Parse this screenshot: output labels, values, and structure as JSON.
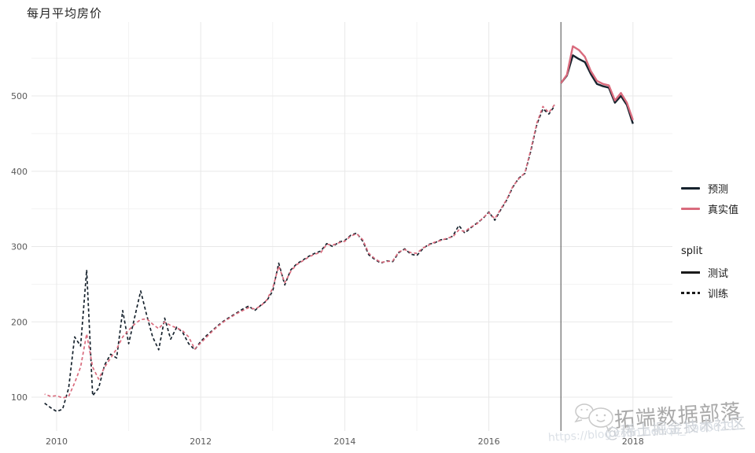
{
  "title": "每月平均房价",
  "legend": {
    "color_items": [
      {
        "label": "预测",
        "color_key": "predicted"
      },
      {
        "label": "真实值",
        "color_key": "actual"
      }
    ],
    "split_title": "split",
    "split_items": [
      {
        "label": "测试",
        "linetype": "solid"
      },
      {
        "label": "训练",
        "linetype": "dashed"
      }
    ]
  },
  "watermark": {
    "brand": "拓端数据部落",
    "community": "@稀土掘金技术社区",
    "url": "https://blog.csdn.net/qq_19600291",
    "icon": "chat-bubbles-icon"
  },
  "chart_data": {
    "type": "line",
    "title": "每月平均房价",
    "xlabel": "",
    "ylabel": "",
    "x_unit": "month",
    "x_origin_label": "2010-01",
    "ylim": [
      55,
      598
    ],
    "grid": true,
    "legend_position": "right",
    "colors": {
      "predicted": "#16222D",
      "actual": "#D96B7D",
      "split_line": "#4D4D4D",
      "grid_major": "#E8E8E8",
      "grid_minor": "#F3F3F3",
      "tick_text": "#595959"
    },
    "axes": {
      "y_ticks": [
        {
          "label": "100",
          "value": 100
        },
        {
          "label": "200",
          "value": 200
        },
        {
          "label": "300",
          "value": 300
        },
        {
          "label": "400",
          "value": 400
        },
        {
          "label": "500",
          "value": 500
        }
      ],
      "y_minor": [
        150,
        250,
        350,
        450,
        550
      ],
      "x_ticks": [
        {
          "label": "2010",
          "month_index": 0
        },
        {
          "label": "2012",
          "month_index": 24
        },
        {
          "label": "2014",
          "month_index": 48
        },
        {
          "label": "2016",
          "month_index": 72
        },
        {
          "label": "2018",
          "month_index": 96
        }
      ],
      "x_minor_month_index": [
        12,
        36,
        60,
        84
      ]
    },
    "split_month_index": 84,
    "series": [
      {
        "id": "train-predicted",
        "name": "预测",
        "split": "训练",
        "color_key": "predicted",
        "solid": false,
        "start_month_index": -2,
        "values": [
          92,
          86,
          81,
          84,
          112,
          180,
          168,
          269,
          102,
          112,
          143,
          157,
          152,
          215,
          171,
          206,
          241,
          209,
          180,
          163,
          205,
          177,
          193,
          186,
          171,
          163,
          174,
          182,
          189,
          196,
          202,
          207,
          212,
          217,
          221,
          215,
          222,
          228,
          241,
          278,
          249,
          269,
          277,
          282,
          287,
          291,
          294,
          304,
          300,
          306,
          308,
          315,
          318,
          307,
          289,
          283,
          278,
          281,
          280,
          292,
          297,
          290,
          288,
          297,
          303,
          305,
          309,
          310,
          314,
          328,
          318,
          325,
          331,
          337,
          346,
          335,
          349,
          362,
          379,
          391,
          397,
          427,
          462,
          483,
          476,
          487
        ]
      },
      {
        "id": "train-actual",
        "name": "真实值",
        "split": "训练",
        "color_key": "actual",
        "solid": false,
        "start_month_index": -2,
        "values": [
          104,
          101,
          102,
          99,
          101,
          119,
          140,
          184,
          140,
          124,
          140,
          152,
          164,
          180,
          189,
          197,
          203,
          204,
          197,
          191,
          200,
          195,
          192,
          188,
          180,
          164,
          172,
          180,
          188,
          195,
          201,
          206,
          211,
          215,
          219,
          217,
          221,
          229,
          245,
          274,
          252,
          267,
          276,
          281,
          286,
          290,
          292,
          303,
          302,
          305,
          307,
          314,
          317,
          309,
          291,
          284,
          279,
          280,
          281,
          293,
          296,
          292,
          291,
          298,
          302,
          306,
          308,
          311,
          313,
          322,
          320,
          326,
          330,
          338,
          345,
          337,
          350,
          363,
          380,
          390,
          398,
          429,
          464,
          486,
          478,
          489
        ]
      },
      {
        "id": "test-predicted",
        "name": "预测",
        "split": "测试",
        "color_key": "predicted",
        "solid": true,
        "start_month_index": 84,
        "values": [
          517,
          527,
          554,
          549,
          545,
          529,
          516,
          513,
          511,
          491,
          500,
          488,
          463
        ]
      },
      {
        "id": "test-actual",
        "name": "真实值",
        "split": "测试",
        "color_key": "actual",
        "solid": true,
        "start_month_index": 84,
        "values": [
          517,
          528,
          566,
          561,
          552,
          533,
          520,
          516,
          514,
          494,
          504,
          491,
          468
        ]
      }
    ]
  }
}
